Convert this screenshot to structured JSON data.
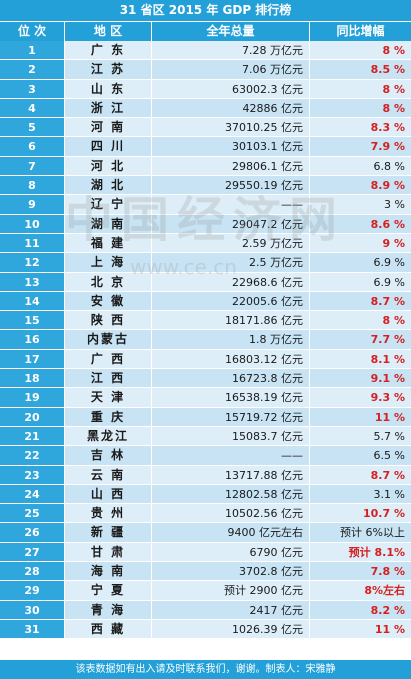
{
  "title": "31 省区 2015 年 GDP 排行榜",
  "headers": {
    "rank": "位 次",
    "region": "地 区",
    "gdp": "全年总量",
    "growth": "同比增幅"
  },
  "colors": {
    "header_bg": "#24a0d8",
    "rank_bg": "#2fa6dc",
    "row_light": "#ddeef9",
    "row_dark": "#c7e3f4",
    "highlight_red": "#d42020"
  },
  "rows": [
    {
      "rank": "1",
      "region": "广 东",
      "gdp": "7.28 万亿元",
      "growth": "8 %",
      "growth_red": true
    },
    {
      "rank": "2",
      "region": "江 苏",
      "gdp": "7.06 万亿元",
      "growth": "8.5 %",
      "growth_red": true
    },
    {
      "rank": "3",
      "region": "山 东",
      "gdp": "63002.3 亿元",
      "growth": "8 %",
      "growth_red": true
    },
    {
      "rank": "4",
      "region": "浙 江",
      "gdp": "42886 亿元",
      "growth": "8 %",
      "growth_red": true
    },
    {
      "rank": "5",
      "region": "河 南",
      "gdp": "37010.25 亿元",
      "growth": "8.3 %",
      "growth_red": true
    },
    {
      "rank": "6",
      "region": "四 川",
      "gdp": "30103.1 亿元",
      "growth": "7.9 %",
      "growth_red": true
    },
    {
      "rank": "7",
      "region": "河 北",
      "gdp": "29806.1 亿元",
      "growth": "6.8 %",
      "growth_red": false
    },
    {
      "rank": "8",
      "region": "湖 北",
      "gdp": "29550.19 亿元",
      "growth": "8.9 %",
      "growth_red": true
    },
    {
      "rank": "9",
      "region": "辽 宁",
      "gdp": "——",
      "growth": "3 %",
      "growth_red": false
    },
    {
      "rank": "10",
      "region": "湖 南",
      "gdp": "29047.2 亿元",
      "growth": "8.6 %",
      "growth_red": true
    },
    {
      "rank": "11",
      "region": "福 建",
      "gdp": "2.59 万亿元",
      "growth": "9 %",
      "growth_red": true
    },
    {
      "rank": "12",
      "region": "上 海",
      "gdp": "2.5 万亿元",
      "growth": "6.9 %",
      "growth_red": false
    },
    {
      "rank": "13",
      "region": "北 京",
      "gdp": "22968.6 亿元",
      "growth": "6.9 %",
      "growth_red": false
    },
    {
      "rank": "14",
      "region": "安 徽",
      "gdp": "22005.6 亿元",
      "growth": "8.7 %",
      "growth_red": true
    },
    {
      "rank": "15",
      "region": "陕 西",
      "gdp": "18171.86 亿元",
      "growth": "8 %",
      "growth_red": true
    },
    {
      "rank": "16",
      "region": "内蒙古",
      "gdp": "1.8 万亿元",
      "growth": "7.7 %",
      "growth_red": true
    },
    {
      "rank": "17",
      "region": "广 西",
      "gdp": "16803.12 亿元",
      "growth": "8.1 %",
      "growth_red": true
    },
    {
      "rank": "18",
      "region": "江 西",
      "gdp": "16723.8 亿元",
      "growth": "9.1 %",
      "growth_red": true
    },
    {
      "rank": "19",
      "region": "天 津",
      "gdp": "16538.19 亿元",
      "growth": "9.3 %",
      "growth_red": true
    },
    {
      "rank": "20",
      "region": "重 庆",
      "gdp": "15719.72 亿元",
      "growth": "11 %",
      "growth_red": true
    },
    {
      "rank": "21",
      "region": "黑龙江",
      "gdp": "15083.7 亿元",
      "growth": "5.7 %",
      "growth_red": false
    },
    {
      "rank": "22",
      "region": "吉 林",
      "gdp": "——",
      "growth": "6.5 %",
      "growth_red": false
    },
    {
      "rank": "23",
      "region": "云 南",
      "gdp": "13717.88 亿元",
      "growth": "8.7 %",
      "growth_red": true
    },
    {
      "rank": "24",
      "region": "山 西",
      "gdp": "12802.58 亿元",
      "growth": "3.1 %",
      "growth_red": false
    },
    {
      "rank": "25",
      "region": "贵 州",
      "gdp": "10502.56 亿元",
      "growth": "10.7 %",
      "growth_red": true
    },
    {
      "rank": "26",
      "region": "新 疆",
      "gdp": "9400 亿元左右",
      "growth": "预计 6%以上",
      "growth_red": false
    },
    {
      "rank": "27",
      "region": "甘 肃",
      "gdp": "6790 亿元",
      "growth": "预计 8.1%",
      "growth_red": true
    },
    {
      "rank": "28",
      "region": "海 南",
      "gdp": "3702.8 亿元",
      "growth": "7.8 %",
      "growth_red": true
    },
    {
      "rank": "29",
      "region": "宁 夏",
      "gdp": "预计 2900 亿元",
      "growth": "8%左右",
      "growth_red": true
    },
    {
      "rank": "30",
      "region": "青 海",
      "gdp": "2417 亿元",
      "growth": "8.2 %",
      "growth_red": true
    },
    {
      "rank": "31",
      "region": "西 藏",
      "gdp": "1026.39 亿元",
      "growth": "11 %",
      "growth_red": true
    }
  ],
  "footer": "该表数据如有出入请及时联系我们，谢谢。制表人：宋雅静",
  "watermark": {
    "brand": "中国经济网",
    "url": "www.ce.cn"
  }
}
